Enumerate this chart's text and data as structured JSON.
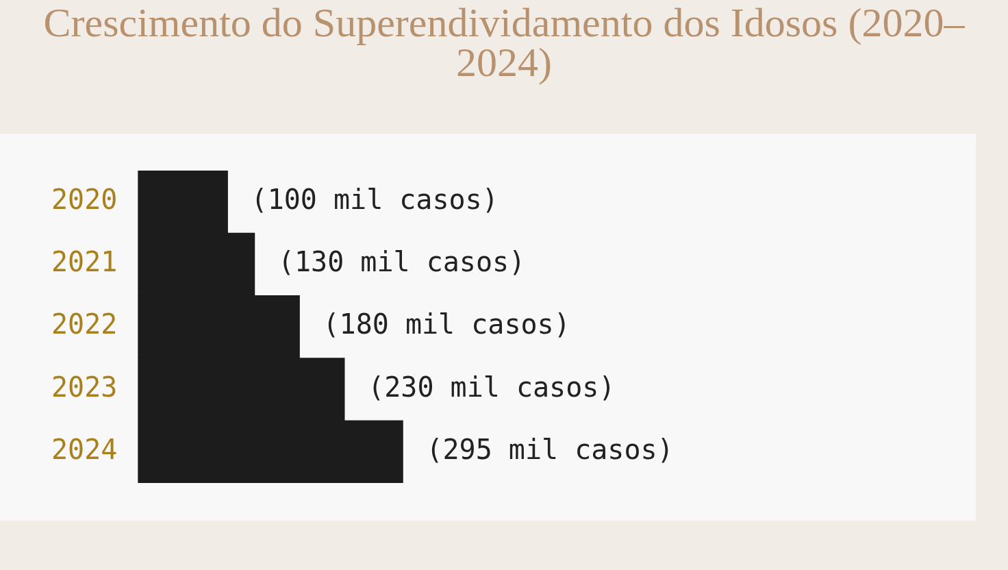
{
  "chart_data": {
    "type": "bar",
    "orientation": "horizontal",
    "title": "Crescimento do Superendividamento dos Idosos (2020–2024)",
    "categories": [
      "2020",
      "2021",
      "2022",
      "2023",
      "2024"
    ],
    "values": [
      100,
      130,
      180,
      230,
      295
    ],
    "value_labels": [
      "(100 mil casos)",
      "(130 mil casos)",
      "(180 mil casos)",
      "(230 mil casos)",
      "(295 mil casos)"
    ],
    "color": "#1c1c1c",
    "grid": false,
    "legend": false,
    "tick_labels": "y"
  }
}
